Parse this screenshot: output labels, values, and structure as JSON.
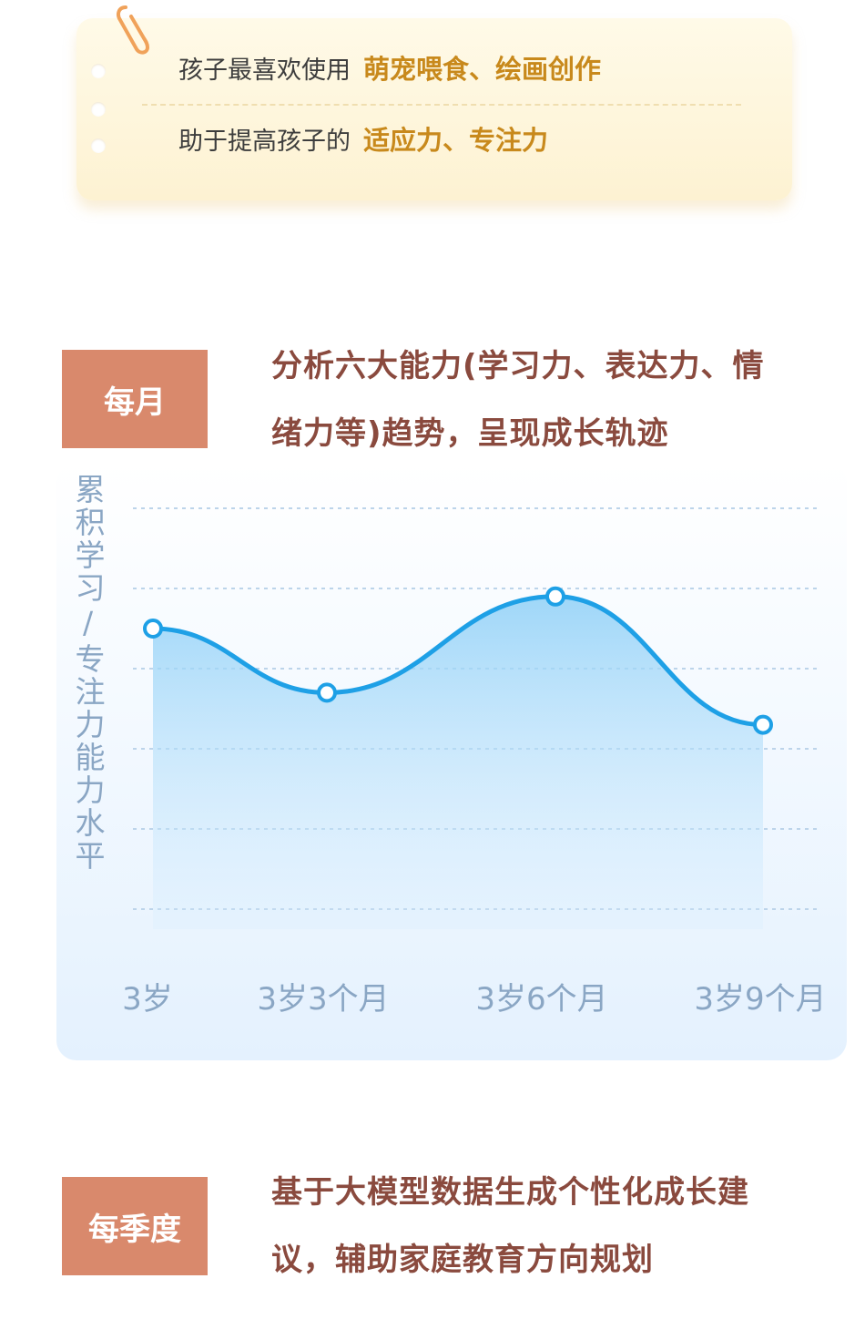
{
  "note": {
    "rows": [
      {
        "text": "孩子最喜欢使用",
        "highlight": "萌宠喂食、绘画创作"
      },
      {
        "text": "助于提高孩子的",
        "highlight": "适应力、专注力"
      }
    ]
  },
  "monthly": {
    "tag": "每月",
    "desc_line1": "分析六大能力(学习力、表达力、情",
    "desc_line2": "绪力等)趋势，呈现成长轨迹"
  },
  "quarterly": {
    "tag": "每季度",
    "desc_line1": "基于大模型数据生成个性化成长建",
    "desc_line2": "议，辅助家庭教育方向规划"
  },
  "colors": {
    "tag_bg": "#d9896c",
    "desc_text": "#8a4a3e",
    "highlight": "#c8891c",
    "line": "#1ea0e6",
    "axis_text": "#8aa6c4"
  },
  "chart_data": {
    "type": "area",
    "ylabel": "累积学习/专注力能力水平",
    "categories": [
      "3岁",
      "3岁3个月",
      "3岁6个月",
      "3岁9个月"
    ],
    "values": [
      3.5,
      2.7,
      3.9,
      2.3
    ],
    "ylim": [
      0,
      5
    ],
    "grid": true,
    "smooth": true
  }
}
